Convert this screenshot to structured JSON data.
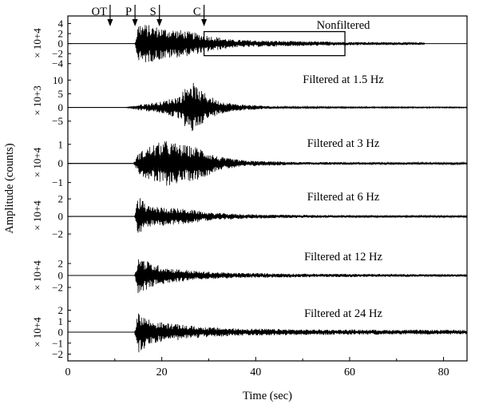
{
  "chart_data": {
    "type": "line",
    "title": "",
    "xlabel": "Time (sec)",
    "ylabel": "Amplitude (counts)",
    "xlim": [
      0,
      85
    ],
    "x_ticks": [
      "0",
      "20",
      "40",
      "60",
      "80"
    ],
    "x_tick_values": [
      0,
      20,
      40,
      60,
      80
    ],
    "arrival_markers": [
      {
        "label": "OT",
        "time": 9
      },
      {
        "label": "P",
        "time": 14.3
      },
      {
        "label": "S",
        "time": 19.5
      },
      {
        "label": "C",
        "time": 29
      }
    ],
    "highlight_window": {
      "start": 29,
      "end": 59,
      "panel": 0
    },
    "panels": [
      {
        "label": "Nonfiltered",
        "scale_label": "× 10+4",
        "ylim": [
          -5,
          5.2
        ],
        "y_ticks": [
          4,
          2,
          0,
          -2,
          -4
        ],
        "y_tick_labels": [
          "4",
          "2",
          "0",
          "−2",
          "−4"
        ],
        "envelope": [
          [
            0,
            0
          ],
          [
            14.3,
            0
          ],
          [
            15,
            4.2
          ],
          [
            20,
            3.2
          ],
          [
            25,
            2.6
          ],
          [
            29,
            1.8
          ],
          [
            35,
            0.8
          ],
          [
            45,
            0.55
          ],
          [
            60,
            0.35
          ],
          [
            76,
            0.25
          ],
          [
            76.5,
            0
          ]
        ],
        "signal_end": 76
      },
      {
        "label": "Filtered at 1.5 Hz",
        "scale_label": "× 10+3",
        "ylim": [
          -8,
          13
        ],
        "y_ticks": [
          10,
          5,
          0,
          -5
        ],
        "y_tick_labels": [
          "10",
          "5",
          "0",
          "−5"
        ],
        "envelope": [
          [
            0,
            0
          ],
          [
            12,
            0
          ],
          [
            13,
            0.2
          ],
          [
            15,
            1.0
          ],
          [
            20,
            2.2
          ],
          [
            24,
            4.5
          ],
          [
            26,
            10.5
          ],
          [
            28,
            6.5
          ],
          [
            32,
            2.5
          ],
          [
            36,
            1.2
          ],
          [
            45,
            0.35
          ],
          [
            60,
            0.25
          ],
          [
            85,
            0.2
          ]
        ],
        "signal_end": 85
      },
      {
        "label": "Filtered at 3 Hz",
        "scale_label": "× 10+4",
        "ylim": [
          -1.35,
          1.45
        ],
        "y_ticks": [
          1,
          0,
          -1
        ],
        "y_tick_labels": [
          "1",
          "0",
          "−1"
        ],
        "envelope": [
          [
            0,
            0
          ],
          [
            14,
            0
          ],
          [
            15,
            0.55
          ],
          [
            18,
            1.0
          ],
          [
            21,
            1.2
          ],
          [
            24,
            1.0
          ],
          [
            28,
            0.85
          ],
          [
            32,
            0.35
          ],
          [
            38,
            0.15
          ],
          [
            50,
            0.07
          ],
          [
            85,
            0.05
          ]
        ],
        "signal_end": 85
      },
      {
        "label": "Filtered at 6 Hz",
        "scale_label": "× 10+4",
        "ylim": [
          -2.9,
          3.1
        ],
        "y_ticks": [
          2,
          0,
          -2
        ],
        "y_tick_labels": [
          "2",
          "0",
          "−2"
        ],
        "envelope": [
          [
            0,
            0
          ],
          [
            14.2,
            0
          ],
          [
            15,
            2.4
          ],
          [
            17,
            1.2
          ],
          [
            22,
            1.0
          ],
          [
            26,
            0.8
          ],
          [
            30,
            0.45
          ],
          [
            38,
            0.25
          ],
          [
            55,
            0.15
          ],
          [
            85,
            0.1
          ]
        ],
        "signal_end": 85
      },
      {
        "label": "Filtered at 12 Hz",
        "scale_label": "× 10+4",
        "ylim": [
          -4.4,
          4.4
        ],
        "y_ticks": [
          2,
          0,
          -2
        ],
        "y_tick_labels": [
          "2",
          "0",
          "−2"
        ],
        "envelope": [
          [
            0,
            0
          ],
          [
            14.2,
            0
          ],
          [
            15,
            3.2
          ],
          [
            18,
            2.0
          ],
          [
            22,
            1.2
          ],
          [
            28,
            0.7
          ],
          [
            35,
            0.45
          ],
          [
            50,
            0.3
          ],
          [
            85,
            0.2
          ]
        ],
        "signal_end": 85
      },
      {
        "label": "Filtered at 24 Hz",
        "scale_label": "× 10+4",
        "ylim": [
          -2.4,
          2.4
        ],
        "y_ticks": [
          2,
          1,
          0,
          -1,
          -2
        ],
        "y_tick_labels": [
          "2",
          "1",
          "0",
          "−1",
          "−2"
        ],
        "envelope": [
          [
            0,
            0
          ],
          [
            14.2,
            0
          ],
          [
            15,
            1.9
          ],
          [
            18,
            1.0
          ],
          [
            22,
            0.8
          ],
          [
            28,
            0.5
          ],
          [
            35,
            0.35
          ],
          [
            50,
            0.25
          ],
          [
            85,
            0.2
          ]
        ],
        "signal_end": 85
      }
    ]
  }
}
